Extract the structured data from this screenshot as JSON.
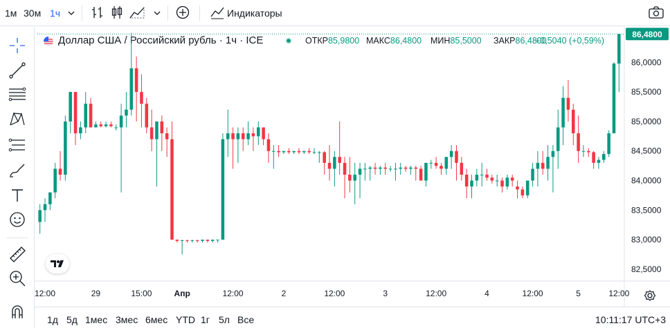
{
  "toolbar": {
    "intervals": [
      "1м",
      "30м",
      "1ч"
    ],
    "active_interval": "1ч",
    "indicators_label": "Индикаторы"
  },
  "legend": {
    "symbol_title": "Доллар США / Российский рубль · 1ч · ICE",
    "open_label": "ОТКР",
    "open_value": "85,9800",
    "high_label": "МАКС",
    "high_value": "86,4800",
    "low_label": "МИН",
    "low_value": "85,5000",
    "close_label": "ЗАКР",
    "close_value": "86,4800",
    "change": "+0,5040 (+0,59%)"
  },
  "bottom": {
    "ranges": [
      "1д",
      "5д",
      "1мес",
      "3мес",
      "6мес",
      "YTD",
      "1г",
      "5л",
      "Все"
    ],
    "clock": "10:11:17 UTC+3"
  },
  "colors": {
    "up": "#089981",
    "down": "#f23645",
    "last_price_label": "#089981",
    "accent": "#2962ff"
  },
  "chart_data": {
    "type": "candlestick",
    "title": "Доллар США / Российский рубль · 1ч · ICE",
    "ylim": [
      82.3,
      86.6
    ],
    "y_ticks": [
      "82,5000",
      "83,0000",
      "83,5000",
      "84,0000",
      "84,5000",
      "85,0000",
      "85,5000",
      "86,0000"
    ],
    "y_tick_values": [
      82.5,
      83.0,
      83.5,
      84.0,
      84.5,
      85.0,
      85.5,
      86.0
    ],
    "x_ticks": [
      "12:00",
      "29",
      "15:00",
      "Апр",
      "12:00",
      "2",
      "12:00",
      "3",
      "12:00",
      "4",
      "12:00",
      "5",
      "12:00"
    ],
    "x_tick_index": [
      1,
      11,
      20,
      28,
      38,
      48,
      58,
      68,
      78,
      88,
      97,
      106,
      114
    ],
    "last_price": 86.48,
    "last_price_label": "86,4800",
    "candles": [
      [
        83.3,
        83.6,
        83.1,
        83.5
      ],
      [
        83.5,
        83.7,
        83.3,
        83.6
      ],
      [
        83.6,
        83.8,
        83.5,
        83.8
      ],
      [
        83.8,
        84.3,
        83.7,
        84.2
      ],
      [
        84.2,
        84.5,
        84.0,
        84.1
      ],
      [
        84.1,
        85.1,
        84.0,
        85.0
      ],
      [
        85.0,
        85.5,
        84.8,
        85.5
      ],
      [
        85.5,
        85.5,
        84.6,
        84.8
      ],
      [
        84.8,
        85.0,
        84.7,
        84.9
      ],
      [
        84.9,
        85.5,
        84.8,
        85.3
      ],
      [
        85.3,
        85.4,
        84.9,
        84.9
      ],
      [
        84.9,
        85.0,
        84.9,
        84.95
      ],
      [
        84.95,
        85.0,
        84.9,
        84.92
      ],
      [
        84.92,
        85.0,
        84.9,
        84.95
      ],
      [
        84.95,
        85.0,
        84.9,
        84.92
      ],
      [
        84.9,
        84.95,
        84.85,
        84.9
      ],
      [
        84.9,
        85.3,
        83.8,
        85.1
      ],
      [
        85.1,
        85.5,
        84.9,
        85.2
      ],
      [
        85.2,
        86.5,
        85.1,
        85.9
      ],
      [
        85.9,
        86.1,
        85.0,
        85.5
      ],
      [
        85.5,
        85.8,
        84.9,
        85.3
      ],
      [
        85.3,
        85.4,
        84.8,
        84.9
      ],
      [
        84.9,
        85.2,
        84.5,
        84.7
      ],
      [
        84.7,
        85.0,
        83.9,
        85.0
      ],
      [
        85.0,
        85.1,
        84.5,
        84.8
      ],
      [
        84.8,
        84.9,
        84.4,
        84.7
      ],
      [
        84.7,
        85.0,
        83.0,
        83.0
      ],
      [
        83.0,
        83.0,
        82.95,
        82.98
      ],
      [
        82.98,
        83.0,
        82.75,
        82.99
      ],
      [
        82.99,
        83.0,
        82.95,
        82.98
      ],
      [
        82.98,
        83.0,
        82.95,
        82.99
      ],
      [
        82.99,
        83.0,
        82.95,
        82.98
      ],
      [
        82.98,
        83.0,
        82.95,
        83.0
      ],
      [
        83.0,
        83.0,
        82.95,
        82.98
      ],
      [
        82.98,
        83.0,
        82.95,
        83.0
      ],
      [
        83.0,
        83.0,
        82.95,
        83.0
      ],
      [
        83.0,
        84.8,
        83.0,
        84.7
      ],
      [
        84.7,
        85.2,
        84.4,
        84.8
      ],
      [
        84.8,
        84.9,
        84.2,
        84.7
      ],
      [
        84.7,
        84.9,
        84.3,
        84.8
      ],
      [
        84.8,
        84.9,
        84.5,
        84.7
      ],
      [
        84.7,
        85.0,
        84.6,
        84.8
      ],
      [
        84.8,
        84.9,
        84.5,
        84.75
      ],
      [
        84.75,
        85.0,
        84.6,
        84.9
      ],
      [
        84.9,
        84.9,
        84.6,
        84.7
      ],
      [
        84.7,
        84.8,
        84.3,
        84.5
      ],
      [
        84.5,
        84.6,
        84.2,
        84.5
      ],
      [
        84.5,
        84.6,
        84.4,
        84.48
      ],
      [
        84.48,
        84.5,
        84.45,
        84.5
      ],
      [
        84.5,
        84.55,
        84.45,
        84.48
      ],
      [
        84.48,
        84.5,
        84.45,
        84.5
      ],
      [
        84.5,
        84.55,
        84.45,
        84.48
      ],
      [
        84.48,
        84.5,
        84.45,
        84.5
      ],
      [
        84.5,
        84.55,
        84.45,
        84.48
      ],
      [
        84.48,
        84.55,
        84.45,
        84.48
      ],
      [
        84.48,
        84.5,
        84.3,
        84.48
      ],
      [
        84.48,
        84.5,
        84.1,
        84.3
      ],
      [
        84.3,
        84.6,
        84.0,
        84.2
      ],
      [
        84.2,
        84.5,
        83.9,
        84.4
      ],
      [
        84.4,
        85.0,
        84.1,
        84.3
      ],
      [
        84.3,
        84.4,
        83.7,
        84.1
      ],
      [
        84.1,
        84.4,
        83.8,
        84.0
      ],
      [
        84.0,
        84.3,
        83.6,
        84.1
      ],
      [
        84.1,
        84.3,
        83.7,
        84.2
      ],
      [
        84.2,
        84.3,
        84.0,
        84.2
      ],
      [
        84.2,
        84.25,
        84.0,
        84.22
      ],
      [
        84.22,
        84.3,
        84.1,
        84.2
      ],
      [
        84.2,
        84.25,
        84.1,
        84.22
      ],
      [
        84.22,
        84.3,
        84.1,
        84.2
      ],
      [
        84.2,
        84.25,
        84.15,
        84.2
      ],
      [
        84.2,
        84.3,
        84.0,
        84.2
      ],
      [
        84.2,
        84.3,
        84.1,
        84.22
      ],
      [
        84.22,
        84.25,
        84.15,
        84.2
      ],
      [
        84.2,
        84.25,
        84.1,
        84.22
      ],
      [
        84.22,
        84.25,
        84.0,
        84.2
      ],
      [
        84.2,
        84.25,
        84.0,
        84.0
      ],
      [
        84.0,
        84.3,
        83.9,
        84.3
      ],
      [
        84.3,
        84.35,
        84.2,
        84.3
      ],
      [
        84.3,
        84.4,
        84.2,
        84.25
      ],
      [
        84.25,
        84.3,
        84.1,
        84.2
      ],
      [
        84.2,
        84.4,
        84.1,
        84.4
      ],
      [
        84.4,
        84.6,
        84.2,
        84.5
      ],
      [
        84.5,
        84.6,
        84.0,
        84.3
      ],
      [
        84.3,
        84.4,
        84.0,
        84.1
      ],
      [
        84.1,
        84.2,
        83.7,
        83.9
      ],
      [
        83.9,
        84.1,
        83.7,
        84.0
      ],
      [
        84.0,
        84.2,
        83.9,
        84.1
      ],
      [
        84.1,
        84.3,
        83.9,
        84.1
      ],
      [
        84.1,
        84.2,
        84.0,
        84.05
      ],
      [
        84.05,
        84.1,
        83.95,
        84.0
      ],
      [
        84.0,
        84.1,
        83.9,
        84.0
      ],
      [
        84.0,
        84.05,
        83.8,
        83.9
      ],
      [
        83.9,
        84.1,
        83.85,
        84.05
      ],
      [
        84.05,
        84.1,
        83.9,
        84.0
      ],
      [
        83.9,
        84.0,
        83.7,
        83.85
      ],
      [
        83.85,
        83.9,
        83.7,
        83.75
      ],
      [
        83.75,
        84.0,
        83.7,
        84.0
      ],
      [
        84.0,
        84.3,
        83.9,
        84.2
      ],
      [
        84.2,
        84.5,
        83.9,
        84.3
      ],
      [
        84.3,
        84.5,
        84.1,
        84.2
      ],
      [
        84.2,
        84.6,
        84.0,
        84.4
      ],
      [
        84.4,
        84.6,
        83.8,
        84.5
      ],
      [
        84.5,
        85.2,
        84.2,
        84.9
      ],
      [
        84.9,
        85.6,
        84.6,
        85.4
      ],
      [
        85.4,
        85.7,
        85.0,
        85.2
      ],
      [
        85.2,
        85.3,
        84.6,
        84.8
      ],
      [
        84.8,
        85.1,
        84.3,
        84.5
      ],
      [
        84.5,
        84.6,
        84.4,
        84.5
      ],
      [
        84.5,
        84.55,
        84.4,
        84.48
      ],
      [
        84.48,
        84.5,
        84.2,
        84.3
      ],
      [
        84.3,
        84.4,
        84.2,
        84.35
      ],
      [
        84.35,
        84.5,
        84.3,
        84.45
      ],
      [
        84.45,
        84.85,
        84.4,
        84.8
      ],
      [
        84.8,
        86.0,
        84.8,
        85.98
      ],
      [
        85.98,
        86.48,
        85.5,
        86.48
      ]
    ]
  }
}
